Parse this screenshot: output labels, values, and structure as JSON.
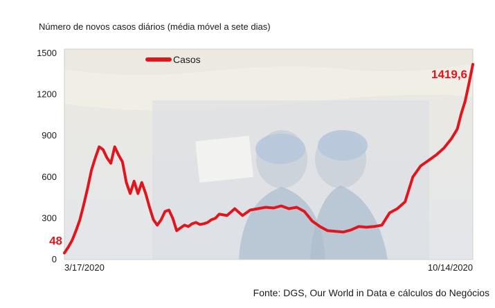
{
  "title": "Número de novos casos diários (média móvel a sete dias)",
  "source": "Fonte: DGS, Our World in Data e cálculos do Negócios",
  "colors": {
    "series": "#e0161f",
    "text": "#1a1a1a",
    "frame": "#cfcfcf"
  },
  "chart_data": {
    "type": "line",
    "ylim": [
      0,
      1500
    ],
    "yticks": [
      "0",
      "300",
      "600",
      "900",
      "1200",
      "1500"
    ],
    "xlim": [
      "2020-03-17",
      "2020-10-14"
    ],
    "xticks": [
      "3/17/2020",
      "10/14/2020"
    ],
    "legend": {
      "position": "top-left"
    },
    "series": [
      {
        "name": "Casos",
        "color": "#e0161f",
        "x": [
          "2020-03-17",
          "2020-03-19",
          "2020-03-21",
          "2020-03-23",
          "2020-03-25",
          "2020-03-27",
          "2020-03-29",
          "2020-03-31",
          "2020-04-02",
          "2020-04-04",
          "2020-04-06",
          "2020-04-08",
          "2020-04-10",
          "2020-04-12",
          "2020-04-14",
          "2020-04-16",
          "2020-04-18",
          "2020-04-20",
          "2020-04-22",
          "2020-04-24",
          "2020-04-26",
          "2020-04-28",
          "2020-04-30",
          "2020-05-02",
          "2020-05-04",
          "2020-05-06",
          "2020-05-08",
          "2020-05-10",
          "2020-05-12",
          "2020-05-14",
          "2020-05-16",
          "2020-05-18",
          "2020-05-20",
          "2020-05-22",
          "2020-05-24",
          "2020-05-26",
          "2020-05-28",
          "2020-05-30",
          "2020-06-01",
          "2020-06-03",
          "2020-06-05",
          "2020-06-09",
          "2020-06-13",
          "2020-06-17",
          "2020-06-21",
          "2020-06-25",
          "2020-06-29",
          "2020-07-03",
          "2020-07-07",
          "2020-07-11",
          "2020-07-15",
          "2020-07-19",
          "2020-07-23",
          "2020-07-27",
          "2020-07-31",
          "2020-08-04",
          "2020-08-08",
          "2020-08-12",
          "2020-08-16",
          "2020-08-20",
          "2020-08-24",
          "2020-08-28",
          "2020-09-01",
          "2020-09-05",
          "2020-09-09",
          "2020-09-13",
          "2020-09-17",
          "2020-09-21",
          "2020-09-25",
          "2020-09-29",
          "2020-10-03",
          "2020-10-06",
          "2020-10-08",
          "2020-10-10",
          "2020-10-12",
          "2020-10-14"
        ],
        "y": [
          48,
          90,
          140,
          210,
          290,
          400,
          520,
          650,
          740,
          820,
          800,
          740,
          700,
          820,
          760,
          710,
          560,
          480,
          570,
          480,
          560,
          480,
          380,
          290,
          250,
          290,
          350,
          360,
          300,
          210,
          230,
          250,
          240,
          260,
          270,
          255,
          260,
          270,
          290,
          300,
          330,
          320,
          370,
          320,
          360,
          370,
          380,
          375,
          390,
          370,
          380,
          350,
          280,
          240,
          210,
          205,
          200,
          215,
          240,
          235,
          240,
          250,
          340,
          370,
          420,
          600,
          680,
          720,
          760,
          810,
          880,
          950,
          1060,
          1150,
          1280,
          1419.6
        ]
      }
    ],
    "annotations": [
      {
        "x": "2020-03-17",
        "y": 48,
        "text": "48"
      },
      {
        "x": "2020-10-14",
        "y": 1419.6,
        "text": "1419,6"
      }
    ]
  }
}
